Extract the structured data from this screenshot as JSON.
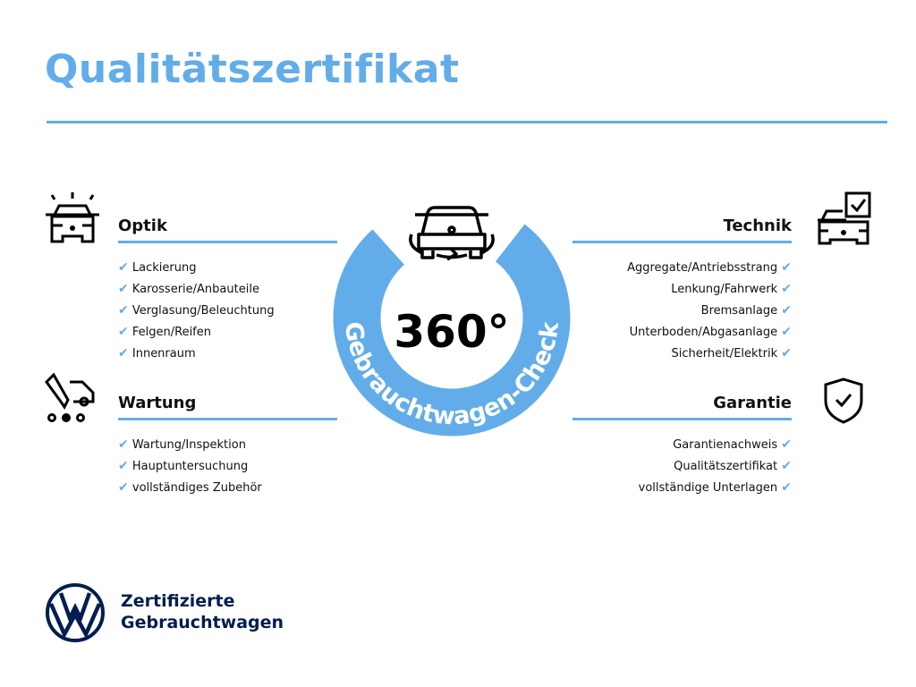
{
  "title": "Qualitätszertifikat",
  "center": {
    "degrees": "360°",
    "ring_text": "Gebrauchtwagen-Check"
  },
  "sections": {
    "optik": {
      "title": "Optik",
      "items": [
        "Lackierung",
        "Karosserie/Anbauteile",
        "Verglasung/Beleuchtung",
        "Felgen/Reifen",
        "Innenraum"
      ]
    },
    "wartung": {
      "title": "Wartung",
      "items": [
        "Wartung/Inspektion",
        "Hauptuntersuchung",
        "vollständiges Zubehör"
      ]
    },
    "technik": {
      "title": "Technik",
      "items": [
        "Aggregate/Antriebsstrang",
        "Lenkung/Fahrwerk",
        "Bremsanlage",
        "Unterboden/Abgasanlage",
        "Sicherheit/Elektrik"
      ]
    },
    "garantie": {
      "title": "Garantie",
      "items": [
        "Garantienachweis",
        "Qualitätszertifikat",
        "vollständige Unterlagen"
      ]
    }
  },
  "brand": {
    "line1": "Zertifizierte",
    "line2": "Gebrauchtwagen"
  },
  "check_symbol": "✔",
  "colors": {
    "accent": "#62ade9",
    "brand": "#001e50"
  }
}
